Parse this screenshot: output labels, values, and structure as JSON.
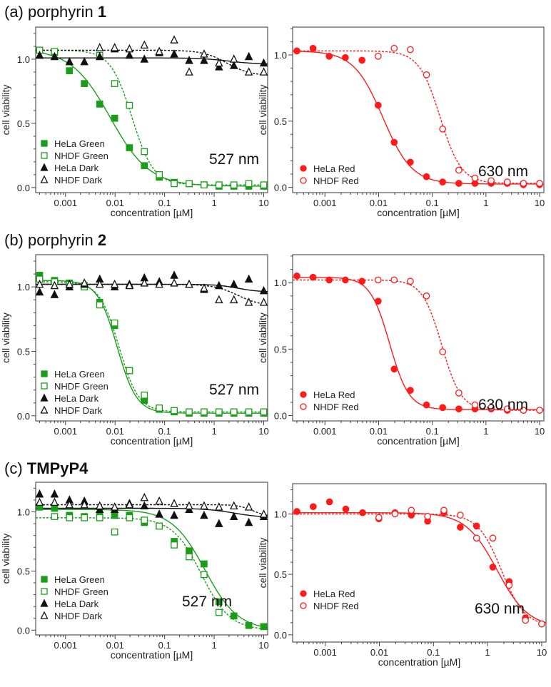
{
  "chart_data": [
    {
      "type": "scatter",
      "panel_label": {
        "prefix": "(a) porphyrin ",
        "bold": "1"
      },
      "xlabel": "concentration [µM]",
      "ylabel": "cell viability",
      "xscale": "log",
      "xlim": [
        0.00025,
        12
      ],
      "ylim": [
        -0.04,
        1.25
      ],
      "xticks": [
        "0.001",
        "0.01",
        "0.1",
        "1",
        "10"
      ],
      "yticks": [
        "0.0",
        "0.5",
        "1.0"
      ],
      "annotation": "527 nm",
      "x": [
        0.0003,
        0.0006,
        0.0012,
        0.0024,
        0.0049,
        0.0098,
        0.0195,
        0.039,
        0.078,
        0.156,
        0.3125,
        0.625,
        1.25,
        2.5,
        5,
        10
      ],
      "series": [
        {
          "name": "HeLa Green",
          "marker": "square",
          "filled": true,
          "color": "#1a9e1a",
          "line": "solid",
          "values": [
            1.07,
            1.05,
            0.91,
            0.81,
            0.65,
            0.54,
            0.31,
            0.17,
            0.08,
            0.04,
            0.03,
            0.02,
            0.01,
            0.01,
            0.01,
            0.01
          ],
          "fit": {
            "top": 1.08,
            "bottom": 0.01,
            "ec50": 0.008,
            "hill": 1.1
          }
        },
        {
          "name": "NHDF Green",
          "marker": "square",
          "filled": false,
          "color": "#1a9e1a",
          "line": "dotted",
          "values": [
            1.07,
            1.06,
            null,
            null,
            1.03,
            0.81,
            0.64,
            0.28,
            0.1,
            0.03,
            0.03,
            0.02,
            0.02,
            0.02,
            0.03,
            0.02
          ],
          "fit": {
            "top": 1.07,
            "bottom": 0.02,
            "ec50": 0.022,
            "hill": 2.0
          }
        },
        {
          "name": "HeLa Dark",
          "marker": "triangle",
          "filled": true,
          "color": "#111111",
          "line": "solid",
          "values": [
            1.03,
            1.02,
            0.98,
            0.98,
            1.02,
            1.08,
            1.03,
            1.0,
            1.05,
            1.04,
            0.99,
            0.99,
            0.94,
            0.95,
            1.02,
            0.97
          ],
          "fit": {
            "top": 1.01,
            "bottom": 0.96,
            "ec50": 2.0,
            "hill": 1.5
          }
        },
        {
          "name": "NHDF Dark",
          "marker": "triangle",
          "filled": false,
          "color": "#111111",
          "line": "dotted",
          "values": [
            null,
            null,
            null,
            null,
            1.09,
            1.09,
            1.08,
            1.11,
            1.06,
            1.15,
            0.9,
            1.04,
            0.97,
            1.0,
            0.9,
            0.9
          ],
          "fit": {
            "top": 1.07,
            "bottom": 0.87,
            "ec50": 1.8,
            "hill": 1.8
          }
        }
      ]
    },
    {
      "type": "scatter",
      "xlabel": "concentration [µM]",
      "ylabel": "cell viability",
      "xscale": "log",
      "xlim": [
        0.00025,
        12
      ],
      "ylim": [
        -0.04,
        1.21
      ],
      "xticks": [
        "0.001",
        "0.01",
        "0.1",
        "1",
        "10"
      ],
      "yticks": [
        "0.0",
        "0.5",
        "1.0"
      ],
      "annotation": "630 nm",
      "x": [
        0.0003,
        0.0006,
        0.0012,
        0.0024,
        0.0049,
        0.0098,
        0.0195,
        0.039,
        0.078,
        0.156,
        0.3125,
        0.625,
        1.25,
        2.5,
        5,
        10
      ],
      "series": [
        {
          "name": "HeLa Red",
          "marker": "circle",
          "filled": true,
          "color": "#ff1a1a",
          "line": "solid",
          "values": [
            1.03,
            1.05,
            0.99,
            0.98,
            0.96,
            0.62,
            0.34,
            0.19,
            0.08,
            0.04,
            0.03,
            0.03,
            0.03,
            0.03,
            0.02,
            0.02
          ],
          "fit": {
            "top": 1.03,
            "bottom": 0.025,
            "ec50": 0.012,
            "hill": 1.6
          }
        },
        {
          "name": "NHDF Red",
          "marker": "circle",
          "filled": false,
          "color": "#ff1a1a",
          "line": "dotted",
          "values": [
            null,
            null,
            null,
            null,
            null,
            0.99,
            1.05,
            1.04,
            0.85,
            0.44,
            0.13,
            0.07,
            0.05,
            0.04,
            0.03,
            0.03
          ],
          "fit": {
            "top": 1.03,
            "bottom": 0.03,
            "ec50": 0.14,
            "hill": 2.2
          }
        }
      ]
    },
    {
      "type": "scatter",
      "panel_label": {
        "prefix": "(b) porphyrin ",
        "bold": "2"
      },
      "xlabel": "concentration [µM]",
      "ylabel": "cell viability",
      "xscale": "log",
      "xlim": [
        0.00025,
        12
      ],
      "ylim": [
        -0.04,
        1.25
      ],
      "xticks": [
        "0.001",
        "0.01",
        "0.1",
        "1",
        "10"
      ],
      "yticks": [
        "0.0",
        "0.5",
        "1.0"
      ],
      "annotation": "527 nm",
      "x": [
        0.0003,
        0.0006,
        0.0012,
        0.0024,
        0.0049,
        0.0098,
        0.0195,
        0.039,
        0.078,
        0.156,
        0.3125,
        0.625,
        1.25,
        2.5,
        5,
        10
      ],
      "series": [
        {
          "name": "HeLa Green",
          "marker": "square",
          "filled": true,
          "color": "#1a9e1a",
          "line": "solid",
          "values": [
            1.09,
            1.05,
            1.03,
            1.01,
            0.88,
            0.7,
            0.35,
            0.12,
            0.05,
            0.03,
            0.02,
            0.02,
            0.02,
            0.02,
            0.02,
            0.02
          ],
          "fit": {
            "top": 1.05,
            "bottom": 0.02,
            "ec50": 0.011,
            "hill": 2.2
          }
        },
        {
          "name": "NHDF Green",
          "marker": "square",
          "filled": false,
          "color": "#1a9e1a",
          "line": "dotted",
          "values": [
            1.06,
            1.04,
            1.02,
            1.0,
            0.86,
            0.72,
            0.35,
            0.16,
            0.06,
            0.04,
            0.03,
            0.03,
            0.03,
            0.03,
            0.03,
            0.03
          ],
          "fit": {
            "top": 1.04,
            "bottom": 0.03,
            "ec50": 0.012,
            "hill": 2.2
          }
        },
        {
          "name": "HeLa Dark",
          "marker": "triangle",
          "filled": true,
          "color": "#111111",
          "line": "solid",
          "values": [
            0.96,
            0.94,
            1.0,
            1.02,
            1.06,
            1.0,
            1.02,
            1.07,
            1.04,
            1.09,
            1.02,
            0.98,
            1.01,
            1.02,
            1.06,
            0.97
          ],
          "fit": {
            "top": 1.02,
            "bottom": 0.96,
            "ec50": 3.0,
            "hill": 2.0
          }
        },
        {
          "name": "NHDF Dark",
          "marker": "triangle",
          "filled": false,
          "color": "#111111",
          "line": "dotted",
          "values": [
            1.02,
            1.01,
            1.02,
            1.03,
            1.02,
            1.02,
            1.01,
            1.03,
            1.02,
            1.03,
            1.02,
            0.99,
            0.9,
            0.9,
            0.88,
            0.88
          ],
          "fit": {
            "top": 1.02,
            "bottom": 0.85,
            "ec50": 3.0,
            "hill": 1.8
          }
        }
      ]
    },
    {
      "type": "scatter",
      "xlabel": "concentration [µM]",
      "ylabel": "cell viability",
      "xscale": "log",
      "xlim": [
        0.00025,
        12
      ],
      "ylim": [
        -0.04,
        1.21
      ],
      "xticks": [
        "0.001",
        "0.01",
        "0.1",
        "1",
        "10"
      ],
      "yticks": [
        "0.0",
        "0.5",
        "1.0"
      ],
      "annotation": "630 nm",
      "x": [
        0.0003,
        0.0006,
        0.0012,
        0.0024,
        0.0049,
        0.0098,
        0.0195,
        0.039,
        0.078,
        0.156,
        0.3125,
        0.625,
        1.25,
        2.5,
        5,
        10
      ],
      "series": [
        {
          "name": "HeLa Red",
          "marker": "circle",
          "filled": true,
          "color": "#ff1a1a",
          "line": "solid",
          "values": [
            1.05,
            1.04,
            1.02,
            1.02,
            1.01,
            0.86,
            0.35,
            0.19,
            0.08,
            0.06,
            0.05,
            0.05,
            0.05,
            0.04,
            0.04,
            0.04
          ],
          "fit": {
            "top": 1.04,
            "bottom": 0.045,
            "ec50": 0.016,
            "hill": 2.4
          }
        },
        {
          "name": "NHDF Red",
          "marker": "circle",
          "filled": false,
          "color": "#ff1a1a",
          "line": "dotted",
          "values": [
            null,
            null,
            null,
            null,
            null,
            1.02,
            1.02,
            1.01,
            0.9,
            0.48,
            0.17,
            0.08,
            0.06,
            0.05,
            0.04,
            0.04
          ],
          "fit": {
            "top": 1.02,
            "bottom": 0.04,
            "ec50": 0.15,
            "hill": 2.4
          }
        }
      ]
    },
    {
      "type": "scatter",
      "panel_label": {
        "prefix": "(c) ",
        "bold": "TMPyP4"
      },
      "xlabel": "concentration [µM]",
      "ylabel": "cell viability",
      "xscale": "log",
      "xlim": [
        0.00025,
        12
      ],
      "ylim": [
        -0.04,
        1.25
      ],
      "xticks": [
        "0.001",
        "0.01",
        "0.1",
        "1",
        "10"
      ],
      "yticks": [
        "0.0",
        "0.5",
        "1.0"
      ],
      "annotation": "527 nm",
      "x": [
        0.0003,
        0.0006,
        0.0012,
        0.0024,
        0.0049,
        0.0098,
        0.0195,
        0.039,
        0.078,
        0.156,
        0.3125,
        0.625,
        1.25,
        2.5,
        5,
        10
      ],
      "series": [
        {
          "name": "HeLa Green",
          "marker": "square",
          "filled": true,
          "color": "#1a9e1a",
          "line": "solid",
          "values": [
            1.04,
            1.03,
            0.97,
            0.96,
            0.97,
            0.97,
            0.97,
            0.91,
            0.88,
            0.75,
            0.67,
            0.56,
            0.24,
            0.12,
            0.04,
            0.03
          ],
          "fit": {
            "top": 1.02,
            "bottom": 0.0,
            "ec50": 0.65,
            "hill": 1.3
          }
        },
        {
          "name": "NHDF Green",
          "marker": "square",
          "filled": false,
          "color": "#1a9e1a",
          "line": "dotted",
          "values": [
            null,
            0.96,
            0.95,
            0.95,
            0.95,
            0.83,
            0.95,
            0.93,
            0.88,
            0.72,
            0.62,
            0.47,
            0.15,
            null,
            null,
            null
          ],
          "fit": {
            "top": 0.95,
            "bottom": 0.0,
            "ec50": 0.55,
            "hill": 1.5
          }
        },
        {
          "name": "HeLa Dark",
          "marker": "triangle",
          "filled": true,
          "color": "#111111",
          "line": "solid",
          "values": [
            1.15,
            1.15,
            1.1,
            1.09,
            1.02,
            1.02,
            1.07,
            1.05,
            0.98,
            0.97,
            1.02,
            0.97,
            0.9,
            0.96,
            0.91,
            0.96
          ],
          "fit": {
            "top": 1.03,
            "bottom": 0.95,
            "ec50": 2.5,
            "hill": 1.5
          }
        },
        {
          "name": "NHDF Dark",
          "marker": "triangle",
          "filled": false,
          "color": "#111111",
          "line": "dotted",
          "values": [
            1.08,
            1.08,
            1.06,
            1.06,
            1.05,
            1.04,
            1.06,
            1.12,
            1.09,
            1.07,
            1.05,
            1.05,
            1.04,
            1.05,
            1.04,
            0.98
          ],
          "fit": {
            "top": 1.06,
            "bottom": 0.96,
            "ec50": 6.0,
            "hill": 3.0
          }
        }
      ]
    },
    {
      "type": "scatter",
      "xlabel": "concentration [µM]",
      "ylabel": "cell viability",
      "xscale": "log",
      "xlim": [
        0.00025,
        12
      ],
      "ylim": [
        -0.06,
        1.25
      ],
      "xticks": [
        "0.001",
        "0.01",
        "0.1",
        "1",
        "10"
      ],
      "yticks": [
        "0.0",
        "0.5",
        "1.0"
      ],
      "annotation": "630 nm",
      "x": [
        0.0003,
        0.0006,
        0.0012,
        0.0024,
        0.0049,
        0.0098,
        0.0195,
        0.039,
        0.078,
        0.156,
        0.3125,
        0.625,
        1.25,
        2.5,
        5,
        10
      ],
      "series": [
        {
          "name": "HeLa Red",
          "marker": "circle",
          "filled": true,
          "color": "#ff1a1a",
          "line": "solid",
          "values": [
            1.02,
            1.06,
            1.1,
            1.04,
            1.01,
            0.96,
            1.01,
            0.99,
            0.94,
            1.01,
            0.89,
            0.9,
            0.56,
            0.44,
            0.14,
            0.09
          ],
          "fit": {
            "top": 1.01,
            "bottom": 0.06,
            "ec50": 1.5,
            "hill": 1.5
          }
        },
        {
          "name": "NHDF Red",
          "marker": "circle",
          "filled": false,
          "color": "#ff1a1a",
          "line": "dotted",
          "values": [
            null,
            null,
            null,
            null,
            null,
            0.97,
            1.0,
            1.03,
            0.98,
            1.03,
            0.99,
            0.8,
            0.8,
            0.41,
            0.12,
            0.09
          ],
          "fit": {
            "top": 1.0,
            "bottom": 0.07,
            "ec50": 1.8,
            "hill": 2.0
          }
        }
      ]
    }
  ]
}
